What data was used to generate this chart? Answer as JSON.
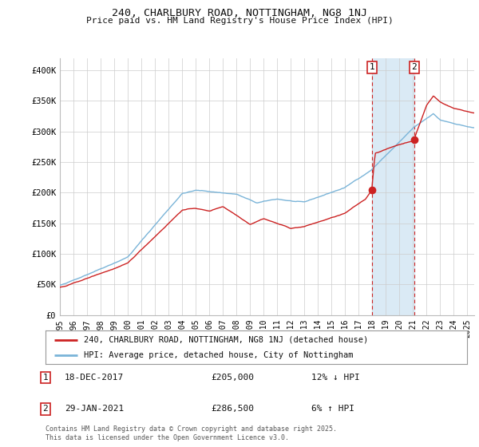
{
  "title1": "240, CHARLBURY ROAD, NOTTINGHAM, NG8 1NJ",
  "title2": "Price paid vs. HM Land Registry's House Price Index (HPI)",
  "ylabel_ticks": [
    "£0",
    "£50K",
    "£100K",
    "£150K",
    "£200K",
    "£250K",
    "£300K",
    "£350K",
    "£400K"
  ],
  "ytick_values": [
    0,
    50000,
    100000,
    150000,
    200000,
    250000,
    300000,
    350000,
    400000
  ],
  "ylim": [
    0,
    420000
  ],
  "xlim_start": 1995.0,
  "xlim_end": 2025.5,
  "hpi_color": "#7ab4d8",
  "price_color": "#cc2222",
  "marker1_x": 2017.96,
  "marker1_y": 205000,
  "marker2_x": 2021.08,
  "marker2_y": 286500,
  "legend_label1": "240, CHARLBURY ROAD, NOTTINGHAM, NG8 1NJ (detached house)",
  "legend_label2": "HPI: Average price, detached house, City of Nottingham",
  "annotation1_date": "18-DEC-2017",
  "annotation1_price": "£205,000",
  "annotation1_hpi": "12% ↓ HPI",
  "annotation2_date": "29-JAN-2021",
  "annotation2_price": "£286,500",
  "annotation2_hpi": "6% ↑ HPI",
  "footnote": "Contains HM Land Registry data © Crown copyright and database right 2025.\nThis data is licensed under the Open Government Licence v3.0.",
  "background_color": "#ffffff",
  "grid_color": "#cccccc",
  "shade_color": "#daeaf5"
}
